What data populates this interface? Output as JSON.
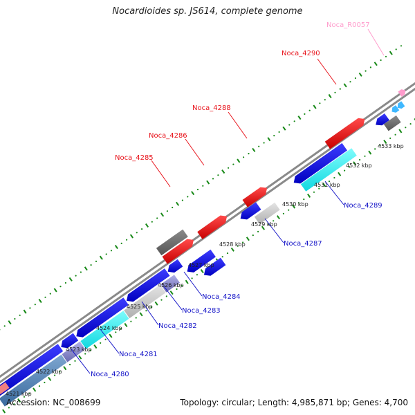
{
  "title": "Nocardioides sp. JS614, complete genome",
  "accession": "Accession: NC_008699",
  "summary": "Topology: circular; Length: 4,985,871 bp; Genes: 4,700",
  "ticks": [
    "4521 kbp",
    "4522 kbp",
    "4523 kbp",
    "4524 kbp",
    "4525 kbp",
    "4526 kbp",
    "4527 kbp",
    "4528 kbp",
    "4529 kbp",
    "4530 kbp",
    "4531 kbp",
    "4532 kbp",
    "4533 kbp"
  ],
  "upper_labels": [
    "Noca_4285",
    "Noca_4286",
    "Noca_4288",
    "Noca_4290",
    "Noca_R0057"
  ],
  "lower_labels": [
    "Noca_4280",
    "Noca_4281",
    "Noca_4282",
    "Noca_4283",
    "Noca_4284",
    "Noca_4287",
    "Noca_4289"
  ],
  "colors": {
    "forward_gene": "#e8141c",
    "reverse_gene": "#1616e0",
    "rna": "#ff9ccc",
    "cyan": "#20f0f0",
    "grey": "#6f6f6f",
    "backbone": "#8a8a8a",
    "marks": "#1a8a1a"
  }
}
